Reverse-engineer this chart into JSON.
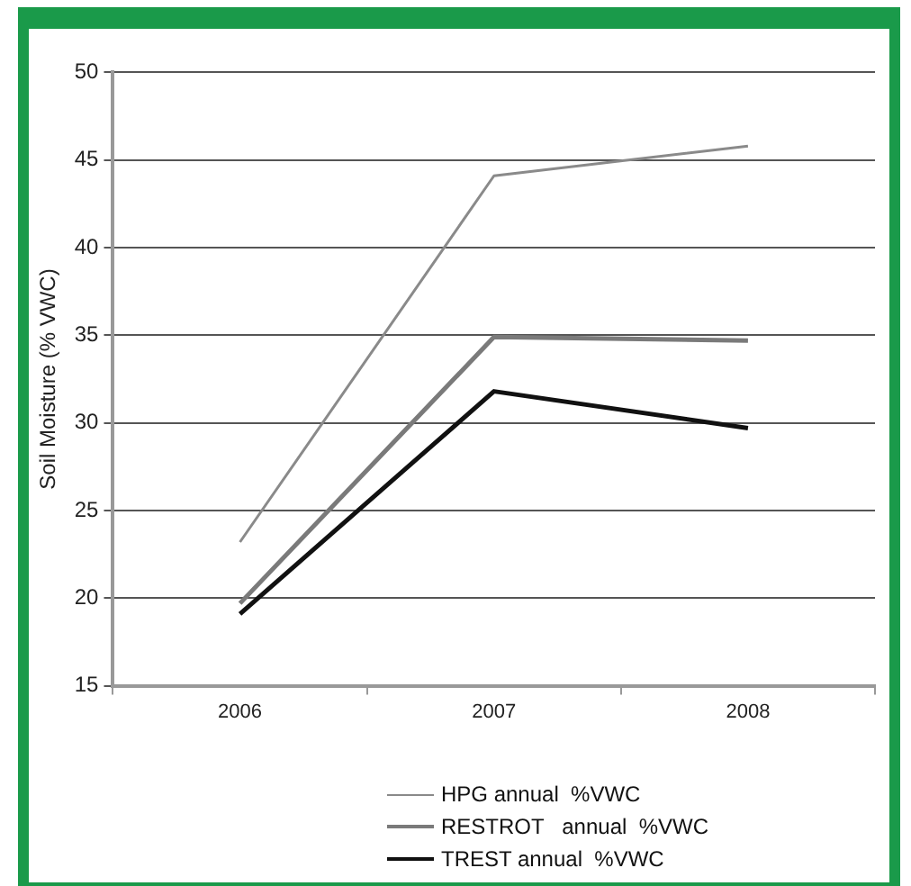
{
  "chart_data": {
    "type": "line",
    "ylabel": "Soil Moisture (% VWC)",
    "categories": [
      "2006",
      "2007",
      "2008"
    ],
    "series": [
      {
        "name": "HPG annual  %VWC",
        "color": "#8a8a8a",
        "values": [
          23.2,
          44.1,
          45.8
        ]
      },
      {
        "name": "RESTROT   annual  %VWC",
        "color": "#7a7a7a",
        "values": [
          19.7,
          34.9,
          34.7
        ]
      },
      {
        "name": "TREST annual  %VWC",
        "color": "#111111",
        "values": [
          19.1,
          31.8,
          29.7
        ]
      }
    ],
    "ylim": [
      15,
      50
    ],
    "yticks": [
      15,
      20,
      25,
      30,
      35,
      40,
      45,
      50
    ],
    "grid": "y",
    "legend": "bottom",
    "marker": "none",
    "line_style": "solid"
  }
}
